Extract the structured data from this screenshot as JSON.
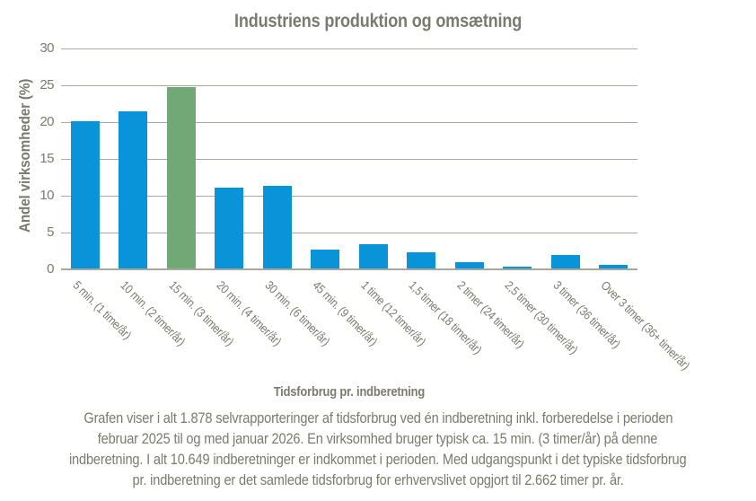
{
  "chart_data": {
    "type": "bar",
    "title": "Industriens produktion og omsætning",
    "xlabel": "Tidsforbrug pr. indberetning",
    "ylabel": "Andel virksomheder (%)",
    "ylim": [
      0,
      30
    ],
    "yticks": [
      0,
      5,
      10,
      15,
      20,
      25,
      30
    ],
    "grid": true,
    "legend": false,
    "categories": [
      "5 min. (1 time/år)",
      "10 min. (2 timer/år)",
      "15 min. (3 timer/år)",
      "20 min. (4 timer/år)",
      "30 min. (6 timer/år)",
      "45 min. (9 timer/år)",
      "1 time (12 timer/år)",
      "1,5 timer (18 timer/år)",
      "2 timer (24 timer/år)",
      "2,5 timer (30 timer/år)",
      "3 timer (36 timer/år)",
      "Over 3 timer (36+ timer/år)"
    ],
    "values": [
      20.0,
      21.3,
      24.6,
      11.0,
      11.2,
      2.6,
      3.3,
      2.2,
      0.8,
      0.2,
      1.8,
      0.5
    ],
    "highlight_index": 2,
    "colors": {
      "bar": "#0994D9",
      "highlight": "#72A876",
      "text": "#7B7A6E",
      "gridline": "#ACABA1",
      "axis": "#A8A79D"
    }
  },
  "footer": {
    "lines": [
      "Grafen viser i alt 1.878 selvrapporteringer af tidsforbrug ved én indberetning inkl. forberedelse i perioden",
      "februar 2025 til og med januar 2026. En virksomhed bruger typisk ca. 15 min. (3 timer/år) på denne",
      "indberetning. I alt 10.649 indberetninger er indkommet i perioden. Med udgangspunkt i det typiske tidsforbrug",
      "pr. indberetning er det samlede tidsforbrug for erhvervslivet opgjort til 2.662 timer pr. år."
    ]
  }
}
